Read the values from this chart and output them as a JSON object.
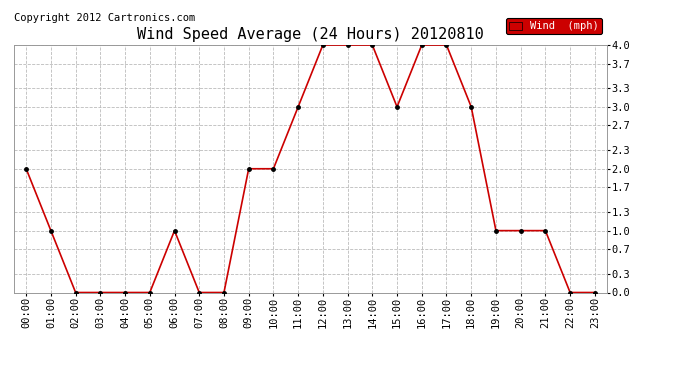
{
  "title": "Wind Speed Average (24 Hours) 20120810",
  "copyright": "Copyright 2012 Cartronics.com",
  "legend_label": "Wind  (mph)",
  "x_labels": [
    "00:00",
    "01:00",
    "02:00",
    "03:00",
    "04:00",
    "05:00",
    "06:00",
    "07:00",
    "08:00",
    "09:00",
    "10:00",
    "11:00",
    "12:00",
    "13:00",
    "14:00",
    "15:00",
    "16:00",
    "17:00",
    "18:00",
    "19:00",
    "20:00",
    "21:00",
    "22:00",
    "23:00"
  ],
  "y_values": [
    2.0,
    1.0,
    0.0,
    0.0,
    0.0,
    0.0,
    1.0,
    0.0,
    0.0,
    2.0,
    2.0,
    3.0,
    4.0,
    4.0,
    4.0,
    3.0,
    4.0,
    4.0,
    3.0,
    1.0,
    1.0,
    1.0,
    0.0,
    0.0
  ],
  "y_ticks": [
    0.0,
    0.3,
    0.7,
    1.0,
    1.3,
    1.7,
    2.0,
    2.3,
    2.7,
    3.0,
    3.3,
    3.7,
    4.0
  ],
  "ylim": [
    0.0,
    4.0
  ],
  "line_color": "#cc0000",
  "marker_color": "#000000",
  "grid_color": "#bbbbbb",
  "background_color": "#ffffff",
  "title_fontsize": 11,
  "copyright_fontsize": 7.5,
  "tick_fontsize": 7.5,
  "legend_bg_color": "#cc0000",
  "legend_text_color": "#ffffff",
  "legend_fontsize": 7.5
}
